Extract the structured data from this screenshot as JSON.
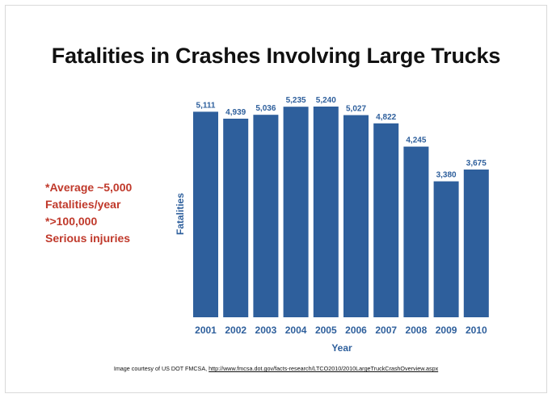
{
  "slide": {
    "title": "Fatalities in Crashes Involving Large Trucks",
    "note_lines": [
      "*Average ~5,000",
      "Fatalities/year",
      "*>100,000",
      "Serious injuries"
    ],
    "caption_prefix": "Image courtesy of US DOT FMCSA,",
    "caption_url": "http://www.fmcsa.dot.gov/facts-research/LTCO2010/2010LargeTruckCrashOverview.aspx"
  },
  "colors": {
    "bar": "#2e5f9c",
    "axis_text": "#2e5f9c",
    "note": "#c0392b"
  },
  "chart_data": {
    "type": "bar",
    "categories": [
      "2001",
      "2002",
      "2003",
      "2004",
      "2005",
      "2006",
      "2007",
      "2008",
      "2009",
      "2010"
    ],
    "values": [
      5111,
      4939,
      5036,
      5235,
      5240,
      5027,
      4822,
      4245,
      3380,
      3675
    ],
    "value_labels": [
      "5,111",
      "4,939",
      "5,036",
      "5,235",
      "5,240",
      "5,027",
      "4,822",
      "4,245",
      "3,380",
      "3,675"
    ],
    "xlabel": "Year",
    "ylabel": "Fatalities",
    "ylim": [
      0,
      5240
    ],
    "grid": false
  }
}
